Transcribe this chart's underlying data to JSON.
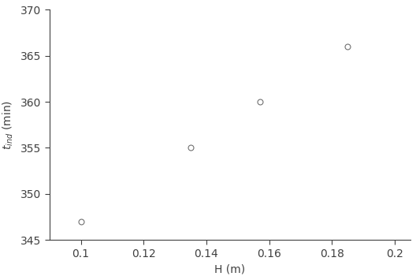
{
  "x": [
    0.1,
    0.135,
    0.157,
    0.185
  ],
  "y": [
    347,
    355,
    360,
    366
  ],
  "xlim": [
    0.09,
    0.205
  ],
  "ylim": [
    345,
    370
  ],
  "xticks": [
    0.1,
    0.12,
    0.14,
    0.16,
    0.18,
    0.2
  ],
  "yticks": [
    345,
    350,
    355,
    360,
    365,
    370
  ],
  "xlabel": "H (m)",
  "ylabel": "t_ind (min)",
  "marker": "o",
  "marker_size": 5,
  "marker_facecolor": "white",
  "marker_edgecolor": "#707070",
  "marker_edgewidth": 0.8,
  "background_color": "#ffffff",
  "tick_color": "#404040",
  "spine_color": "#404040",
  "label_fontsize": 10,
  "tick_fontsize": 10
}
